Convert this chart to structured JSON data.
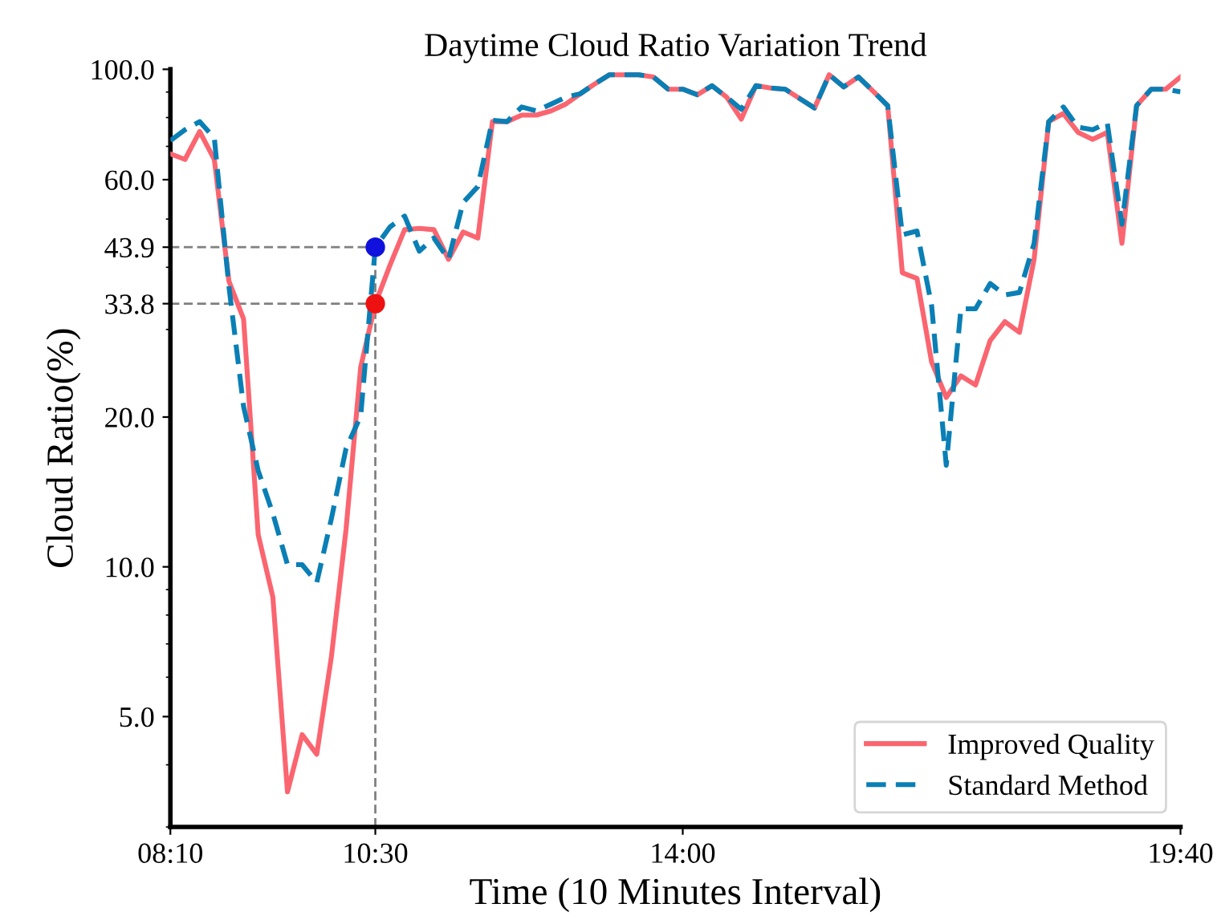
{
  "chart_data": {
    "type": "line",
    "title": "Daytime Cloud Ratio Variation Trend",
    "xlabel": "Time (10 Minutes Interval)",
    "ylabel": "Cloud Ratio(%)",
    "x": [
      8.1667,
      8.3333,
      8.5,
      8.6667,
      8.8333,
      9,
      9.1667,
      9.3333,
      9.5,
      9.6667,
      9.8333,
      10,
      10.1667,
      10.3333,
      10.5,
      10.6667,
      10.8333,
      11,
      11.1667,
      11.3333,
      11.5,
      11.6667,
      11.8333,
      12,
      12.1667,
      12.3333,
      12.5,
      12.6667,
      12.8333,
      13,
      13.1667,
      13.3333,
      13.5,
      13.6667,
      13.8333,
      14,
      14.1667,
      14.3333,
      14.5,
      14.6667,
      14.8333,
      15,
      15.1667,
      15.3333,
      15.5,
      15.6667,
      15.8333,
      16,
      16.1667,
      16.3333,
      16.5,
      16.6667,
      16.8333,
      17,
      17.1667,
      17.3333,
      17.5,
      17.6667,
      17.8333,
      18,
      18.1667,
      18.3333,
      18.5,
      18.6667,
      18.8333,
      19,
      19.1667,
      19.3333,
      19.5,
      19.6667
    ],
    "series": [
      {
        "name": "Improved Quality",
        "color": "#fa6570",
        "line_style": "solid",
        "values": [
          67.6,
          65.9,
          75.0,
          65.9,
          37.5,
          31.5,
          11.6,
          8.7,
          3.53,
          4.6,
          4.2,
          6.6,
          11.9,
          25.2,
          33.8,
          40.4,
          47.6,
          47.9,
          47.6,
          41.5,
          47.1,
          45.8,
          78.5,
          78.5,
          80.9,
          80.9,
          82.5,
          85.1,
          89.3,
          93.5,
          97.5,
          97.5,
          97.5,
          96.5,
          91.2,
          91.2,
          88.9,
          92.7,
          87.9,
          79.4,
          92.7,
          91.7,
          91.2,
          87.3,
          83.6,
          97.5,
          92.2,
          96.5,
          90.4,
          84.5,
          39.0,
          38.0,
          25.8,
          21.9,
          24.2,
          23.2,
          28.5,
          31.1,
          29.6,
          41.5,
          78.5,
          81.5,
          74.7,
          72.3,
          74.7,
          44.7,
          84.5,
          91.2,
          91.2,
          96.5
        ]
      },
      {
        "name": "Standard Method",
        "color": "#0a7fb5",
        "line_style": "dashed",
        "values": [
          71.9,
          75.6,
          78.5,
          72.8,
          36.6,
          21,
          15.6,
          12.8,
          10.1,
          10.1,
          9.3,
          12.5,
          17.3,
          20.1,
          43.9,
          48.2,
          50.7,
          43.1,
          45.8,
          41.5,
          54.0,
          58.1,
          79,
          78.5,
          84,
          82.5,
          85.1,
          87.9,
          89.3,
          93.5,
          97.5,
          97.5,
          97.5,
          96.5,
          91.2,
          91.2,
          88.9,
          92.7,
          87.9,
          83.1,
          92.7,
          91.7,
          91.2,
          87.3,
          83.6,
          97.5,
          92.2,
          96.5,
          90.4,
          84.5,
          46.5,
          47.3,
          33.5,
          16.0,
          33.0,
          33.0,
          37.1,
          35.2,
          35.6,
          44.7,
          78.5,
          84,
          76.5,
          75.6,
          78,
          48.8,
          84.5,
          91.2,
          91.2,
          90.1
        ]
      },
      {
        "type": "scatter",
        "color": "#ee1111",
        "x": [
          10.5
        ],
        "values": [
          33.8
        ]
      },
      {
        "type": "scatter",
        "color": "#1111dd",
        "x": [
          10.5
        ],
        "values": [
          43.9
        ]
      }
    ],
    "ref_lines": [
      {
        "axis": "y",
        "value": 33.8,
        "color": "#808080",
        "line_style": "dashed"
      },
      {
        "axis": "y",
        "value": 43.9,
        "color": "#808080",
        "line_style": "dashed"
      },
      {
        "axis": "x",
        "value": 10.5,
        "color": "#808080",
        "line_style": "dashed"
      }
    ],
    "log": "y",
    "xlim": [
      8.1667,
      19.6667
    ],
    "xticks": [
      {
        "value": 8.1667,
        "label": "08:10"
      },
      {
        "value": 10.5,
        "label": "10:30"
      },
      {
        "value": 14,
        "label": "14:00"
      },
      {
        "value": 19.6667,
        "label": "19:40"
      }
    ],
    "ylim": [
      3,
      100
    ],
    "yticks": [
      {
        "value": 5,
        "label": "5.0"
      },
      {
        "value": 10,
        "label": "10.0"
      },
      {
        "value": 20,
        "label": "20.0"
      },
      {
        "value": 33.8,
        "label": "33.8"
      },
      {
        "value": 43.9,
        "label": "43.9"
      },
      {
        "value": 60,
        "label": "60.0"
      },
      {
        "value": 100,
        "label": "100.0"
      }
    ],
    "grid": false,
    "legend": "lower right"
  }
}
